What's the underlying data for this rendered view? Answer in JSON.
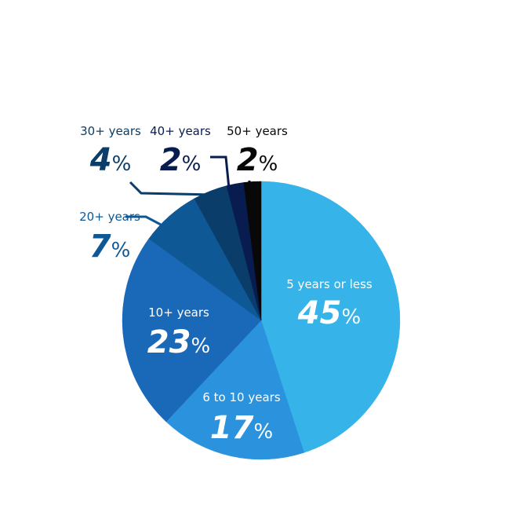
{
  "chart_data": {
    "type": "pie",
    "title": "",
    "unit": "%",
    "slices": [
      {
        "label": "5 years or less",
        "value": 45,
        "color": "#36b3e8"
      },
      {
        "label": "6 to 10 years",
        "value": 17,
        "color": "#2b93de"
      },
      {
        "label": "10+ years",
        "value": 23,
        "color": "#1a69b8"
      },
      {
        "label": "20+ years",
        "value": 7,
        "color": "#0f5896"
      },
      {
        "label": "30+ years",
        "value": 4,
        "color": "#0a3d6a"
      },
      {
        "label": "40+ years",
        "value": 2,
        "color": "#081c4f"
      },
      {
        "label": "50+ years",
        "value": 2,
        "color": "#080808"
      }
    ]
  }
}
